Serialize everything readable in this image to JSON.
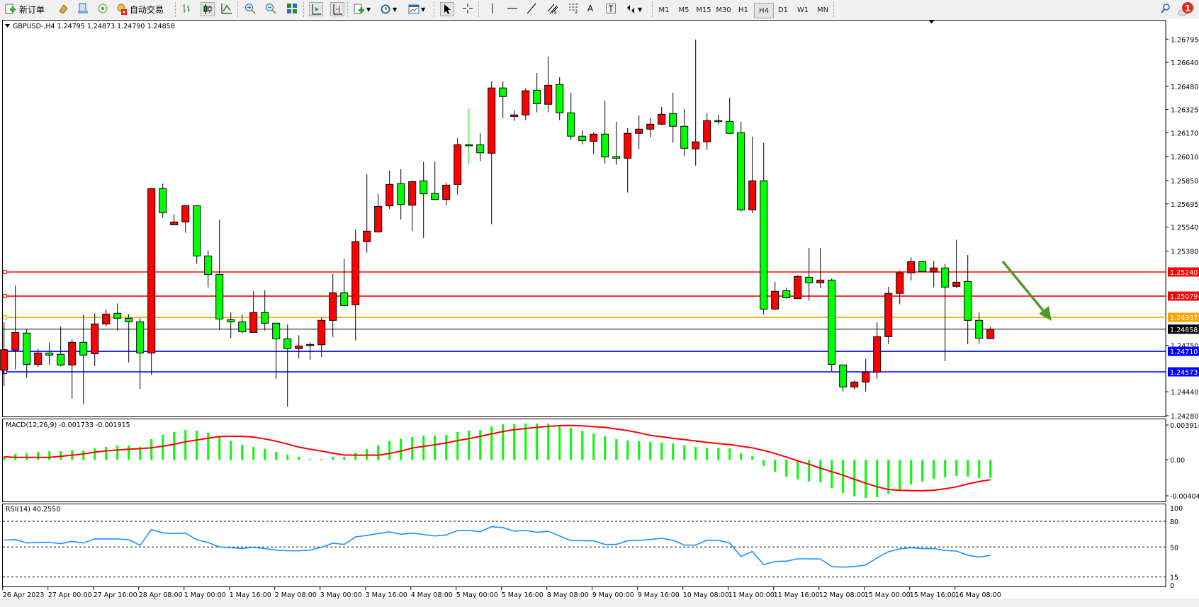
{
  "toolbar": {
    "new_order_label": "新订单",
    "auto_trading_label": "自动交易",
    "timeframes": [
      "M1",
      "M5",
      "M15",
      "M30",
      "H1",
      "H4",
      "D1",
      "W1",
      "MN"
    ],
    "active_timeframe": "H4",
    "notification_count": "1"
  },
  "chart": {
    "header": "GBPUSD-,H4  1.24795 1.24873 1.24790 1.24858",
    "bull_color": "#ff0000",
    "bear_color": "#00ff00",
    "price_ticks": [
      "1.26795",
      "1.26640",
      "1.26480",
      "1.26325",
      "1.26170",
      "1.26010",
      "1.25850",
      "1.25695",
      "1.25540",
      "1.25380",
      "1.24750",
      "1.24440",
      "1.24280"
    ],
    "levels": [
      {
        "price": "1.25240",
        "color": "#ff0000"
      },
      {
        "price": "1.25079",
        "color": "#ff0000"
      },
      {
        "price": "1.24937",
        "color": "#ffa500"
      },
      {
        "price": "1.24858",
        "color": "#000000"
      },
      {
        "price": "1.24710",
        "color": "#0000ff"
      },
      {
        "price": "1.24573",
        "color": "#0000ff"
      }
    ],
    "arrow_color": "#4f9a2a",
    "time_labels": [
      "26 Apr 2023",
      "27 Apr 00:00",
      "27 Apr 16:00",
      "28 Apr 08:00",
      "1 May 00:00",
      "1 May 16:00",
      "2 May 08:00",
      "3 May 00:00",
      "3 May 16:00",
      "4 May 08:00",
      "5 May 00:00",
      "5 May 16:00",
      "8 May 08:00",
      "9 May 00:00",
      "9 May 16:00",
      "10 May 08:00",
      "11 May 00:00",
      "11 May 16:00",
      "12 May 08:00",
      "15 May 00:00",
      "15 May 16:00",
      "16 May 08:00"
    ]
  },
  "macd": {
    "label": "MACD(12,26,9) -0.001733 -0.001915",
    "axis_ticks": [
      "0.003914",
      "0.00",
      "-0.004049"
    ],
    "hist_color": "#00ff00",
    "signal_color": "#ff0000"
  },
  "rsi": {
    "label": "RSI(14) 40.2550",
    "axis_ticks": [
      "100",
      "80",
      "50",
      "15",
      "0"
    ],
    "levels": [
      80,
      50,
      15
    ],
    "line_color": "#1e90ff"
  },
  "chart_data": {
    "type": "candlestick",
    "symbol": "GBPUSD-",
    "timeframe": "H4",
    "ohlc": [
      [
        1.24584,
        1.24904,
        1.24478,
        1.2472
      ],
      [
        1.24718,
        1.25149,
        1.24589,
        1.24836
      ],
      [
        1.24832,
        1.24857,
        1.24534,
        1.24623
      ],
      [
        1.24623,
        1.24728,
        1.24605,
        1.24699
      ],
      [
        1.24699,
        1.2477,
        1.2462,
        1.24685
      ],
      [
        1.2469,
        1.24876,
        1.24609,
        1.24619
      ],
      [
        1.24619,
        1.24791,
        1.24395,
        1.2477
      ],
      [
        1.2477,
        1.24956,
        1.24357,
        1.24685
      ],
      [
        1.24694,
        1.24964,
        1.24612,
        1.24893
      ],
      [
        1.24893,
        1.24989,
        1.24877,
        1.24959
      ],
      [
        1.24964,
        1.2503,
        1.24849,
        1.24931
      ],
      [
        1.24931,
        1.24959,
        1.24636,
        1.24907
      ],
      [
        1.24907,
        1.24931,
        1.24458,
        1.24699
      ],
      [
        1.24699,
        1.25797,
        1.24552,
        1.25797
      ],
      [
        1.25797,
        1.2583,
        1.25601,
        1.25636
      ],
      [
        1.25555,
        1.25626,
        1.25555,
        1.25574
      ],
      [
        1.25574,
        1.25683,
        1.25502,
        1.25683
      ],
      [
        1.25683,
        1.25683,
        1.25294,
        1.25347
      ],
      [
        1.25347,
        1.25385,
        1.25138,
        1.25224
      ],
      [
        1.25224,
        1.2559,
        1.24854,
        1.24926
      ],
      [
        1.24921,
        1.2497,
        1.24797,
        1.24907
      ],
      [
        1.24907,
        1.24956,
        1.2483,
        1.24841
      ],
      [
        1.24836,
        1.25112,
        1.24836,
        1.24969
      ],
      [
        1.24969,
        1.25117,
        1.24849,
        1.24898
      ],
      [
        1.24898,
        1.24898,
        1.24527,
        1.24794
      ],
      [
        1.24794,
        1.2489,
        1.2434,
        1.24728
      ],
      [
        1.24728,
        1.24817,
        1.24664,
        1.24746
      ],
      [
        1.24752,
        1.2477,
        1.24655,
        1.24756
      ],
      [
        1.24754,
        1.24936,
        1.24672,
        1.24917
      ],
      [
        1.24917,
        1.25227,
        1.24806,
        1.25101
      ],
      [
        1.25101,
        1.2533,
        1.2501,
        1.25016
      ],
      [
        1.25021,
        1.25524,
        1.24783,
        1.25443
      ],
      [
        1.25442,
        1.25893,
        1.25369,
        1.25513
      ],
      [
        1.25507,
        1.2576,
        1.25507,
        1.25678
      ],
      [
        1.25682,
        1.25917,
        1.25661,
        1.25825
      ],
      [
        1.2583,
        1.25926,
        1.2559,
        1.25691
      ],
      [
        1.25686,
        1.2585,
        1.25514,
        1.25844
      ],
      [
        1.25849,
        1.25978,
        1.25467,
        1.25762
      ],
      [
        1.25764,
        1.25978,
        1.25719,
        1.25724
      ],
      [
        1.25724,
        1.25835,
        1.25685,
        1.2582
      ],
      [
        1.25825,
        1.26133,
        1.25757,
        1.2609
      ],
      [
        1.2609,
        1.26331,
        1.25961,
        1.26089
      ],
      [
        1.2609,
        1.26167,
        1.2598,
        1.26036
      ],
      [
        1.26033,
        1.26513,
        1.25559,
        1.26469
      ],
      [
        1.26469,
        1.26513,
        1.26268,
        1.26412
      ],
      [
        1.26279,
        1.26319,
        1.26249,
        1.26289
      ],
      [
        1.26289,
        1.26465,
        1.26254,
        1.2645
      ],
      [
        1.26454,
        1.26569,
        1.26306,
        1.26364
      ],
      [
        1.2636,
        1.26678,
        1.26306,
        1.26487
      ],
      [
        1.26492,
        1.26541,
        1.26254,
        1.26303
      ],
      [
        1.26303,
        1.26437,
        1.26122,
        1.26147
      ],
      [
        1.26147,
        1.26189,
        1.26093,
        1.26118
      ],
      [
        1.26112,
        1.26172,
        1.26027,
        1.26161
      ],
      [
        1.26161,
        1.26385,
        1.25965,
        1.26008
      ],
      [
        1.2601,
        1.26243,
        1.25956,
        1.26
      ],
      [
        1.26,
        1.262,
        1.25771,
        1.26166
      ],
      [
        1.26166,
        1.26286,
        1.2606,
        1.26194
      ],
      [
        1.26194,
        1.26271,
        1.2614,
        1.26227
      ],
      [
        1.26227,
        1.26342,
        1.26221,
        1.26293
      ],
      [
        1.26298,
        1.26437,
        1.26103,
        1.26213
      ],
      [
        1.26213,
        1.26328,
        1.26013,
        1.26066
      ],
      [
        1.26062,
        1.26792,
        1.25951,
        1.26109
      ],
      [
        1.26109,
        1.263,
        1.26055,
        1.26251
      ],
      [
        1.26251,
        1.2629,
        1.26226,
        1.2625
      ],
      [
        1.26246,
        1.26404,
        1.26166,
        1.26166
      ],
      [
        1.2617,
        1.26243,
        1.25644,
        1.25655
      ],
      [
        1.25655,
        1.26144,
        1.25634,
        1.25849
      ],
      [
        1.25849,
        1.26101,
        1.24956,
        1.24992
      ],
      [
        1.24992,
        1.25174,
        1.24988,
        1.25111
      ],
      [
        1.25115,
        1.25136,
        1.25062,
        1.25068
      ],
      [
        1.25062,
        1.25218,
        1.25062,
        1.2521
      ],
      [
        1.25205,
        1.25401,
        1.25048,
        1.25167
      ],
      [
        1.25167,
        1.25401,
        1.25133,
        1.25186
      ],
      [
        1.25186,
        1.25196,
        1.24578,
        1.24623
      ],
      [
        1.24619,
        1.24619,
        1.24442,
        1.24472
      ],
      [
        1.24472,
        1.24516,
        1.24456,
        1.24505
      ],
      [
        1.24505,
        1.24658,
        1.24442,
        1.24571
      ],
      [
        1.24571,
        1.24904,
        1.24527,
        1.24808
      ],
      [
        1.24808,
        1.25141,
        1.24759,
        1.25097
      ],
      [
        1.25097,
        1.25249,
        1.25024,
        1.25234
      ],
      [
        1.25234,
        1.25338,
        1.25183,
        1.25309
      ],
      [
        1.25309,
        1.25309,
        1.25243,
        1.25243
      ],
      [
        1.2524,
        1.25314,
        1.25138,
        1.25267
      ],
      [
        1.25267,
        1.25294,
        1.24644,
        1.25139
      ],
      [
        1.25144,
        1.25456,
        1.25133,
        1.25172
      ],
      [
        1.25177,
        1.25354,
        1.24759,
        1.24917
      ],
      [
        1.24917,
        1.2497,
        1.24759,
        1.24798
      ],
      [
        1.24795,
        1.24873,
        1.2479,
        1.24858
      ]
    ],
    "ylim": [
      1.2428,
      1.26795
    ],
    "macd_hist": [
      0.00034,
      0.00065,
      0.00073,
      0.00088,
      0.00096,
      0.00096,
      0.00104,
      0.00104,
      0.00127,
      0.00142,
      0.00158,
      0.00158,
      0.00142,
      0.00228,
      0.00275,
      0.00306,
      0.00329,
      0.00321,
      0.00298,
      0.00251,
      0.00205,
      0.00166,
      0.00142,
      0.00119,
      0.00088,
      0.00057,
      0.00034,
      0.0001,
      0.0001,
      0.00034,
      0.00034,
      0.0008,
      0.00119,
      0.00158,
      0.00205,
      0.00228,
      0.00251,
      0.00267,
      0.00267,
      0.00275,
      0.00306,
      0.00321,
      0.00329,
      0.00368,
      0.00391,
      0.00391,
      0.00399,
      0.00399,
      0.00399,
      0.00376,
      0.00352,
      0.00321,
      0.0029,
      0.00259,
      0.00228,
      0.00212,
      0.00205,
      0.00197,
      0.00189,
      0.00181,
      0.00158,
      0.00142,
      0.00135,
      0.00135,
      0.00127,
      0.00073,
      0.00041,
      -0.00059,
      -0.00114,
      -0.00162,
      -0.00189,
      -0.00209,
      -0.00216,
      -0.00271,
      -0.00319,
      -0.00353,
      -0.00367,
      -0.0036,
      -0.00326,
      -0.00285,
      -0.00237,
      -0.00209,
      -0.00182,
      -0.00169,
      -0.00155,
      -0.00162,
      -0.00175,
      -0.001733
    ],
    "macd_signal": [
      0.00034,
      0.00028,
      0.00028,
      0.00028,
      0.00028,
      0.00039,
      0.00052,
      0.00065,
      0.00085,
      0.00098,
      0.00109,
      0.00117,
      0.00124,
      0.00132,
      0.0015,
      0.00171,
      0.00199,
      0.00218,
      0.00238,
      0.00256,
      0.00259,
      0.00259,
      0.00251,
      0.0023,
      0.00205,
      0.00174,
      0.0014,
      0.00117,
      0.00096,
      0.00073,
      0.00054,
      0.00052,
      0.00052,
      0.00052,
      0.0007,
      0.00096,
      0.0013,
      0.00148,
      0.00166,
      0.00186,
      0.00212,
      0.00233,
      0.00259,
      0.00285,
      0.00311,
      0.00332,
      0.00344,
      0.00357,
      0.00368,
      0.00376,
      0.00378,
      0.00373,
      0.00365,
      0.00357,
      0.00339,
      0.00321,
      0.00298,
      0.00269,
      0.00254,
      0.00236,
      0.00223,
      0.00207,
      0.00192,
      0.00179,
      0.00168,
      0.0015,
      0.00132,
      0.00104,
      0.0007,
      0.00031,
      -9e-05,
      -0.00043,
      -0.0008,
      -0.00114,
      -0.00148,
      -0.00187,
      -0.00225,
      -0.0026,
      -0.00285,
      -0.00294,
      -0.00297,
      -0.00297,
      -0.00294,
      -0.00278,
      -0.0026,
      -0.00232,
      -0.00209,
      -0.001915
    ],
    "rsi": [
      58.0,
      58.8,
      54.7,
      55.5,
      55.5,
      53.9,
      56.6,
      54.7,
      59.4,
      59.4,
      59.4,
      58.5,
      51.9,
      70.4,
      66.5,
      65.7,
      66.2,
      58.5,
      55.2,
      50.0,
      49.2,
      48.3,
      49.7,
      48.1,
      46.4,
      45.6,
      45.6,
      46.4,
      49.7,
      54.4,
      53.0,
      61.8,
      63.5,
      65.7,
      67.6,
      64.9,
      66.2,
      64.6,
      62.9,
      64.0,
      69.3,
      69.3,
      67.9,
      73.7,
      72.6,
      68.4,
      69.5,
      67.1,
      68.4,
      62.9,
      57.4,
      57.4,
      57.2,
      53.0,
      53.0,
      57.4,
      57.7,
      58.8,
      60.2,
      58.0,
      52.2,
      52.2,
      58.0,
      57.7,
      54.7,
      39.0,
      44.8,
      29.4,
      33.2,
      33.5,
      36.2,
      36.2,
      36.0,
      27.2,
      26.6,
      27.2,
      29.1,
      37.3,
      44.5,
      47.8,
      49.2,
      48.1,
      48.1,
      45.9,
      45.3,
      40.4,
      38.2,
      40.255
    ]
  }
}
